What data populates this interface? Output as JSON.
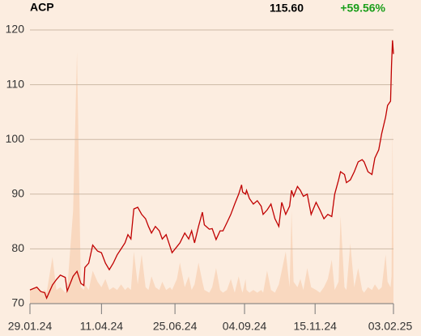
{
  "chart_data": {
    "type": "line",
    "title": "ACP",
    "price_label": "115.60",
    "change_label": "+59.56%",
    "change_color": "#1a9e1a",
    "x": [
      "2024-01-29",
      "2024-02-05",
      "2024-02-09",
      "2024-02-13",
      "2024-02-15",
      "2024-02-21",
      "2024-02-25",
      "2024-02-29",
      "2024-03-05",
      "2024-03-07",
      "2024-03-13",
      "2024-03-17",
      "2024-03-21",
      "2024-03-24",
      "2024-03-25",
      "2024-03-29",
      "2024-04-02",
      "2024-04-07",
      "2024-04-11",
      "2024-04-15",
      "2024-04-19",
      "2024-04-23",
      "2024-04-27",
      "2024-05-01",
      "2024-05-05",
      "2024-05-08",
      "2024-05-11",
      "2024-05-14",
      "2024-05-18",
      "2024-05-22",
      "2024-05-26",
      "2024-05-29",
      "2024-06-01",
      "2024-06-05",
      "2024-06-09",
      "2024-06-12",
      "2024-06-16",
      "2024-06-20",
      "2024-06-22",
      "2024-06-27",
      "2024-06-30",
      "2024-07-05",
      "2024-07-09",
      "2024-07-12",
      "2024-07-15",
      "2024-07-19",
      "2024-07-23",
      "2024-07-25",
      "2024-07-30",
      "2024-08-02",
      "2024-08-06",
      "2024-08-10",
      "2024-08-13",
      "2024-08-17",
      "2024-08-21",
      "2024-08-25",
      "2024-08-29",
      "2024-09-01",
      "2024-09-02",
      "2024-09-05",
      "2024-09-06",
      "2024-09-09",
      "2024-09-13",
      "2024-09-17",
      "2024-09-21",
      "2024-09-23",
      "2024-09-27",
      "2024-10-01",
      "2024-10-05",
      "2024-10-09",
      "2024-10-12",
      "2024-10-16",
      "2024-10-20",
      "2024-10-22",
      "2024-10-24",
      "2024-10-28",
      "2024-10-31",
      "2024-11-03",
      "2024-11-07",
      "2024-11-11",
      "2024-11-16",
      "2024-11-20",
      "2024-11-24",
      "2024-11-28",
      "2024-12-02",
      "2024-12-05",
      "2024-12-09",
      "2024-12-11",
      "2024-12-15",
      "2024-12-17",
      "2024-12-21",
      "2024-12-25",
      "2024-12-29",
      "2025-01-02",
      "2025-01-04",
      "2025-01-08",
      "2025-01-12",
      "2025-01-15",
      "2025-01-19",
      "2025-01-22",
      "2025-01-26",
      "2025-01-28",
      "2025-01-31",
      "2025-02-01",
      "2025-02-02",
      "2025-02-03"
    ],
    "series": [
      {
        "color": "#c00000",
        "values": [
          72.5,
          73,
          72.2,
          72,
          71,
          73.4,
          74.4,
          75.2,
          74.8,
          72.3,
          75,
          75.9,
          73.7,
          73.3,
          76.6,
          77.4,
          80.7,
          79.6,
          79.3,
          77.4,
          76.2,
          77.4,
          78.9,
          80,
          81.1,
          82.6,
          81.8,
          87.3,
          87.6,
          86.3,
          85.5,
          84.1,
          82.9,
          84.1,
          83.3,
          81.8,
          82.6,
          80.4,
          79.3,
          80.4,
          81.1,
          82.9,
          81.8,
          83.3,
          81.1,
          84.1,
          86.7,
          84.4,
          83.6,
          83.7,
          81.7,
          83.3,
          83.3,
          84.8,
          86.3,
          88.2,
          90,
          91.7,
          90.4,
          90,
          90.7,
          89.2,
          88.2,
          88.8,
          87.8,
          86.3,
          87.1,
          88.2,
          85.5,
          84.1,
          88.5,
          86.3,
          87.8,
          90.7,
          89.6,
          91.4,
          90.7,
          89.6,
          90,
          86.3,
          88.5,
          87.1,
          85.5,
          86.3,
          85.9,
          90,
          92.6,
          94.1,
          93.6,
          92.1,
          92.6,
          94.1,
          95.9,
          96.3,
          95.9,
          94.1,
          93.6,
          96.6,
          98.1,
          101.1,
          104.1,
          106.2,
          107,
          113.6,
          118.1,
          115.6
        ]
      }
    ],
    "volume": {
      "color": "#f9d8bf",
      "axis": "y2",
      "values": [
        5,
        6,
        4,
        5,
        4,
        17,
        5,
        6,
        4,
        5,
        34,
        92,
        6,
        5,
        7,
        5,
        12,
        8,
        6,
        9,
        5,
        6,
        5,
        7,
        5,
        6,
        5,
        19,
        7,
        18,
        6,
        5,
        10,
        6,
        5,
        8,
        5,
        6,
        5,
        9,
        15,
        6,
        10,
        5,
        7,
        15,
        8,
        5,
        4,
        6,
        13,
        5,
        4,
        5,
        9,
        4,
        10,
        5,
        4,
        9,
        5,
        4,
        5,
        4,
        5,
        4,
        12,
        5,
        4,
        7,
        12,
        19,
        6,
        34,
        8,
        6,
        9,
        5,
        13,
        6,
        5,
        4,
        6,
        9,
        16,
        5,
        8,
        32,
        6,
        5,
        22,
        6,
        13,
        5,
        4,
        6,
        5,
        7,
        5,
        6,
        18,
        8,
        6,
        10,
        64,
        20
      ]
    },
    "xlim": [
      "2024-01-29",
      "2025-02-03"
    ],
    "xticks": [
      {
        "value": "2024-01-29",
        "label": "29.01.24"
      },
      {
        "value": "2024-04-11",
        "label": "11.04.24"
      },
      {
        "value": "2024-06-25",
        "label": "25.06.24"
      },
      {
        "value": "2024-09-04",
        "label": "04.09.24"
      },
      {
        "value": "2024-11-15",
        "label": "15.11.24"
      },
      {
        "value": "2025-02-03",
        "label": "03.02.25"
      }
    ],
    "ylim": [
      70,
      120
    ],
    "yticks": [
      70,
      80,
      90,
      100,
      110,
      120
    ],
    "y2lim": [
      0,
      100
    ],
    "grid": true
  }
}
